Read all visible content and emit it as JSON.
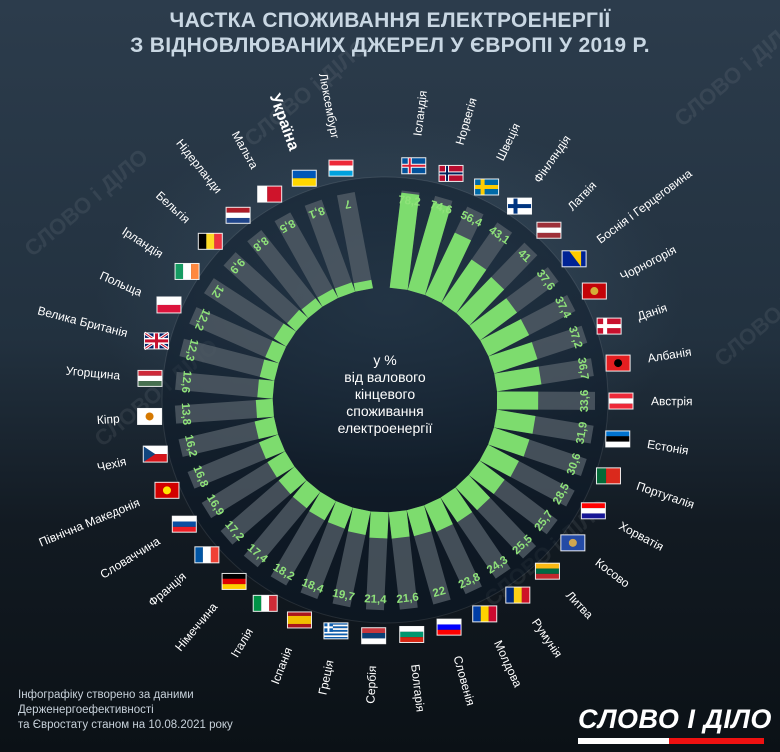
{
  "watermark": "СЛОВО і ДІЛО",
  "brand": "СЛОВО І ДІЛО",
  "footnote": {
    "line1": "Інфографіку створено за даними",
    "line2": "Держенергоефективності",
    "line3": "та Євростату станом на 10.08.2021 року"
  },
  "colors": {
    "bar": "#7ddc6e",
    "bar_bg": "#55606a",
    "value_text": "#8fe27a",
    "label_text": "#ffffff",
    "highlight_text": "#ffffff"
  },
  "chart_data": {
    "type": "bar",
    "layout": "radial",
    "title_line1": "ЧАСТКА СПОЖИВАННЯ ЕЛЕКТРОЕНЕРГІЇ",
    "title_line2": "З ВІДНОВЛЮВАНИХ ДЖЕРЕЛ У ЄВРОПІ У 2019 Р.",
    "center_line1": "у %",
    "center_line2": "від валового",
    "center_line3": "кінцевого",
    "center_line4": "споживання",
    "center_line5": "електроенергії",
    "ylim": [
      0,
      80
    ],
    "highlight": "Україна",
    "categories": [
      "Ісландія",
      "Норвегія",
      "Швеція",
      "Фінляндія",
      "Латвія",
      "Боснія і Герцеговина",
      "Чорногорія",
      "Данія",
      "Албанія",
      "Австрія",
      "Естонія",
      "Португалія",
      "Хорватія",
      "Косово",
      "Литва",
      "Румунія",
      "Молдова",
      "Словенія",
      "Болгарія",
      "Сербія",
      "Греція",
      "Іспанія",
      "Італія",
      "Німеччина",
      "Франція",
      "Словаччина",
      "Північна Македонія",
      "Чехія",
      "Кіпр",
      "Угорщина",
      "Велика Британія",
      "Польща",
      "Ірландія",
      "Бельгія",
      "Нідерланди",
      "Мальта",
      "Україна",
      "Люксембург"
    ],
    "values": [
      78.2,
      74.6,
      56.4,
      43.1,
      41,
      37.6,
      37.4,
      37.2,
      36.7,
      33.6,
      31.9,
      30.6,
      28.5,
      25.7,
      25.5,
      24.3,
      23.8,
      22,
      21.6,
      21.4,
      19.7,
      18.4,
      18.2,
      17.4,
      17.2,
      16.9,
      16.8,
      16.2,
      13.8,
      12.6,
      12.3,
      12.2,
      12,
      9.9,
      8.8,
      8.5,
      8.1,
      7
    ],
    "value_labels": [
      "78,2",
      "74,6",
      "56,4",
      "43,1",
      "41",
      "37,6",
      "37,4",
      "37,2",
      "36,7",
      "33,6",
      "31,9",
      "30,6",
      "28,5",
      "25,7",
      "25,5",
      "24,3",
      "23,8",
      "22",
      "21,6",
      "21,4",
      "19,7",
      "18,4",
      "18,2",
      "17,4",
      "17,2",
      "16,9",
      "16,8",
      "16,2",
      "13,8",
      "12,6",
      "12,3",
      "12,2",
      "12",
      "9,9",
      "8,8",
      "8,5",
      "8,1",
      "7"
    ],
    "flags": [
      "iceland-flag",
      "norway-flag",
      "sweden-flag",
      "finland-flag",
      "latvia-flag",
      "bosnia-flag",
      "montenegro-flag",
      "denmark-flag",
      "albania-flag",
      "austria-flag",
      "estonia-flag",
      "portugal-flag",
      "croatia-flag",
      "kosovo-flag",
      "lithuania-flag",
      "romania-flag",
      "moldova-flag",
      "slovenia-flag",
      "bulgaria-flag",
      "serbia-flag",
      "greece-flag",
      "spain-flag",
      "italy-flag",
      "germany-flag",
      "france-flag",
      "slovakia-flag",
      "north-macedonia-flag",
      "czechia-flag",
      "cyprus-flag",
      "hungary-flag",
      "uk-flag",
      "poland-flag",
      "ireland-flag",
      "belgium-flag",
      "netherlands-flag",
      "malta-flag",
      "ukraine-flag",
      "luxembourg-flag"
    ]
  }
}
